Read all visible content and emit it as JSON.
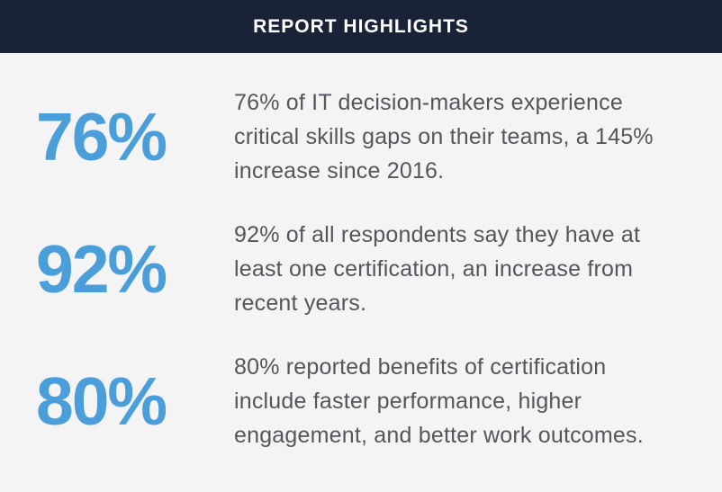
{
  "header": {
    "title": "REPORT HIGHLIGHTS",
    "background_color": "#1a2238",
    "text_color": "#ffffff"
  },
  "page": {
    "background_color": "#f4f4f5",
    "body_text_color": "#55565b",
    "accent_color": "#4a9ed9"
  },
  "stats": [
    {
      "value": "76%",
      "lines": [
        "76% of IT decision-makers experience",
        "critical skills gaps on their teams, a 145%",
        "increase since 2016."
      ]
    },
    {
      "value": "92%",
      "lines": [
        "92% of all respondents say they have at",
        "least one certification, an increase from",
        "recent years."
      ]
    },
    {
      "value": "80%",
      "lines": [
        "80% reported benefits of certification",
        "include faster performance, higher",
        "engagement, and better work outcomes."
      ]
    }
  ]
}
